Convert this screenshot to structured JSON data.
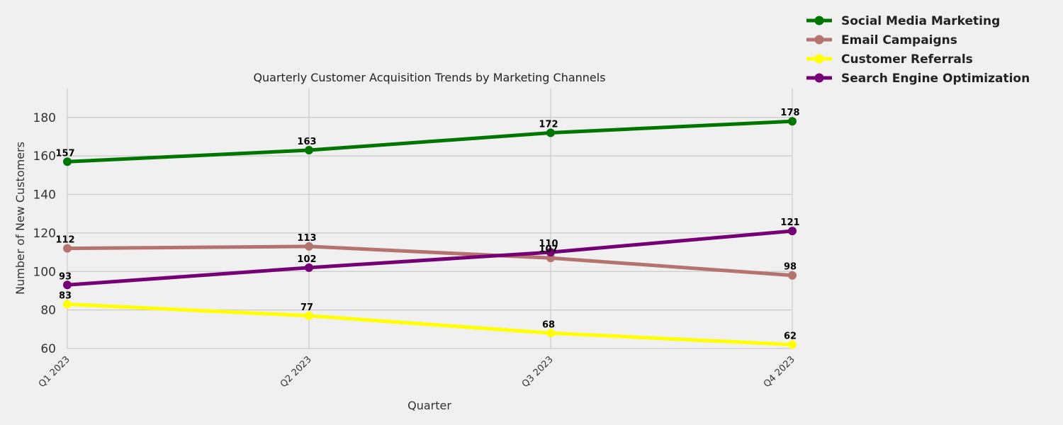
{
  "chart_data": {
    "type": "line",
    "title": "Quarterly Customer Acquisition Trends by Marketing Channels",
    "xlabel": "Quarter",
    "ylabel": "Number of New Customers",
    "categories": [
      "Q1 2023",
      "Q2 2023",
      "Q3 2023",
      "Q4 2023"
    ],
    "ylim": [
      60,
      195
    ],
    "yticks": [
      60,
      80,
      100,
      120,
      140,
      160,
      180
    ],
    "grid": true,
    "legend_position": "top-right",
    "series": [
      {
        "name": "Social Media Marketing",
        "color": "#007500",
        "values": [
          157,
          163,
          172,
          178
        ]
      },
      {
        "name": "Email Campaigns",
        "color": "#b4736e",
        "values": [
          112,
          113,
          107,
          98
        ]
      },
      {
        "name": "Customer Referrals",
        "color": "#ffff00",
        "values": [
          83,
          77,
          68,
          62
        ]
      },
      {
        "name": "Search Engine Optimization",
        "color": "#750075",
        "values": [
          93,
          102,
          110,
          121
        ]
      }
    ]
  }
}
